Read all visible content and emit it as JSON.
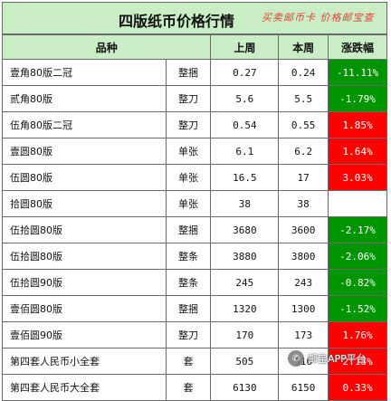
{
  "title": "四版纸币价格行情",
  "slogan": "买卖邮币卡  价格邮宝查",
  "headers": {
    "name": "品种",
    "last": "上周",
    "this": "本周",
    "change": "涨跌幅"
  },
  "rows": [
    {
      "name": "壹角80版二冠",
      "unit": "整捆",
      "last": "0.27",
      "this": "0.24",
      "change": "-11.11%",
      "dir": "down"
    },
    {
      "name": "贰角80版",
      "unit": "整刀",
      "last": "5.6",
      "this": "5.5",
      "change": "-1.79%",
      "dir": "down"
    },
    {
      "name": "伍角80版二冠",
      "unit": "整刀",
      "last": "0.54",
      "this": "0.55",
      "change": "1.85%",
      "dir": "up"
    },
    {
      "name": "壹圆80版",
      "unit": "单张",
      "last": "6.1",
      "this": "6.2",
      "change": "1.64%",
      "dir": "up"
    },
    {
      "name": "伍圆80版",
      "unit": "单张",
      "last": "16.5",
      "this": "17",
      "change": "3.03%",
      "dir": "up"
    },
    {
      "name": "拾圆80版",
      "unit": "单张",
      "last": "38",
      "this": "38",
      "change": "",
      "dir": "none"
    },
    {
      "name": "伍拾圆80版",
      "unit": "整捆",
      "last": "3680",
      "this": "3600",
      "change": "-2.17%",
      "dir": "down"
    },
    {
      "name": "伍拾圆80版",
      "unit": "整条",
      "last": "3880",
      "this": "3800",
      "change": "-2.06%",
      "dir": "down"
    },
    {
      "name": "伍拾圆90版",
      "unit": "整条",
      "last": "245",
      "this": "243",
      "change": "-0.82%",
      "dir": "down"
    },
    {
      "name": "壹佰圆80版",
      "unit": "整捆",
      "last": "1320",
      "this": "1300",
      "change": "-1.52%",
      "dir": "down"
    },
    {
      "name": "壹佰圆90版",
      "unit": "整刀",
      "last": "170",
      "this": "173",
      "change": "1.76%",
      "dir": "up"
    },
    {
      "name": "第四套人民币小全套",
      "unit": "套",
      "last": "505",
      "this": "516",
      "change": "2.18%",
      "dir": "up"
    },
    {
      "name": "第四套人民币大全套",
      "unit": "套",
      "last": "6130",
      "this": "6150",
      "change": "0.33%",
      "dir": "up"
    }
  ],
  "watermark": {
    "icon": "wechat-icon",
    "text": "邮宝APP平台"
  }
}
